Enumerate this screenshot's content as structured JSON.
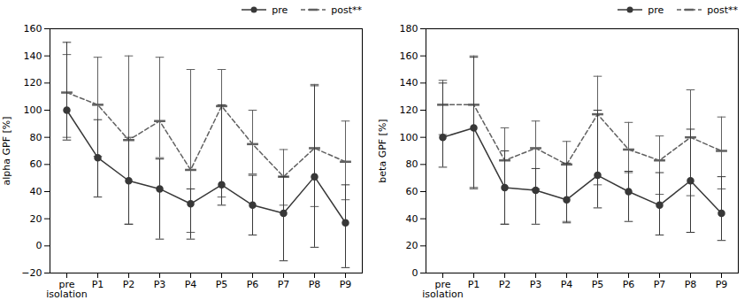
{
  "chart_data": [
    {
      "type": "line",
      "categories": [
        "pre\nisolation",
        "P1",
        "P2",
        "P3",
        "P4",
        "P5",
        "P6",
        "P7",
        "P8",
        "P9"
      ],
      "ylabel": "alpha GPF [%]",
      "ylim": [
        -20,
        160
      ],
      "yticks": [
        -20,
        0,
        20,
        40,
        60,
        80,
        100,
        120,
        140,
        160
      ],
      "legend": "upper right",
      "series": [
        {
          "name": "pre",
          "color": "#383838",
          "line_style": "solid",
          "marker": "circle",
          "values": [
            100,
            65,
            48,
            42,
            31,
            45,
            30,
            24,
            51,
            17
          ],
          "err_lo": [
            22,
            29,
            32,
            37,
            26,
            15,
            22,
            35,
            52,
            33
          ],
          "err_hi": [
            50,
            28,
            32,
            22,
            11,
            59,
            22,
            27,
            67,
            28
          ]
        },
        {
          "name": "post**",
          "color": "#606060",
          "line_style": "dashed",
          "marker": "hline",
          "values": [
            113,
            104,
            78,
            92,
            56,
            103,
            75,
            51,
            72,
            62
          ],
          "err_lo": [
            33,
            38,
            62,
            27,
            46,
            67,
            22,
            21,
            43,
            28
          ],
          "err_hi": [
            28,
            35,
            62,
            47,
            74,
            27,
            25,
            20,
            47,
            30
          ]
        }
      ]
    },
    {
      "type": "line",
      "categories": [
        "pre\nisolation",
        "P1",
        "P2",
        "P3",
        "P4",
        "P5",
        "P6",
        "P7",
        "P8",
        "P9"
      ],
      "ylabel": "beta GPF [%]",
      "ylim": [
        0,
        180
      ],
      "yticks": [
        0,
        20,
        40,
        60,
        80,
        100,
        120,
        140,
        160,
        180
      ],
      "legend": "upper right",
      "series": [
        {
          "name": "pre",
          "color": "#383838",
          "line_style": "solid",
          "marker": "circle",
          "values": [
            100,
            107,
            63,
            61,
            54,
            72,
            60,
            50,
            68,
            44
          ],
          "err_lo": [
            22,
            44,
            27,
            25,
            17,
            24,
            22,
            22,
            38,
            20
          ],
          "err_hi": [
            40,
            52,
            27,
            16,
            27,
            48,
            15,
            24,
            38,
            27
          ]
        },
        {
          "name": "post**",
          "color": "#606060",
          "line_style": "dashed",
          "marker": "hline",
          "values": [
            124,
            124,
            83,
            92,
            80,
            117,
            91,
            83,
            100,
            90
          ],
          "err_lo": [
            22,
            62,
            47,
            30,
            42,
            52,
            17,
            25,
            43,
            28
          ],
          "err_hi": [
            18,
            36,
            24,
            20,
            17,
            28,
            20,
            18,
            35,
            25
          ]
        }
      ]
    }
  ]
}
